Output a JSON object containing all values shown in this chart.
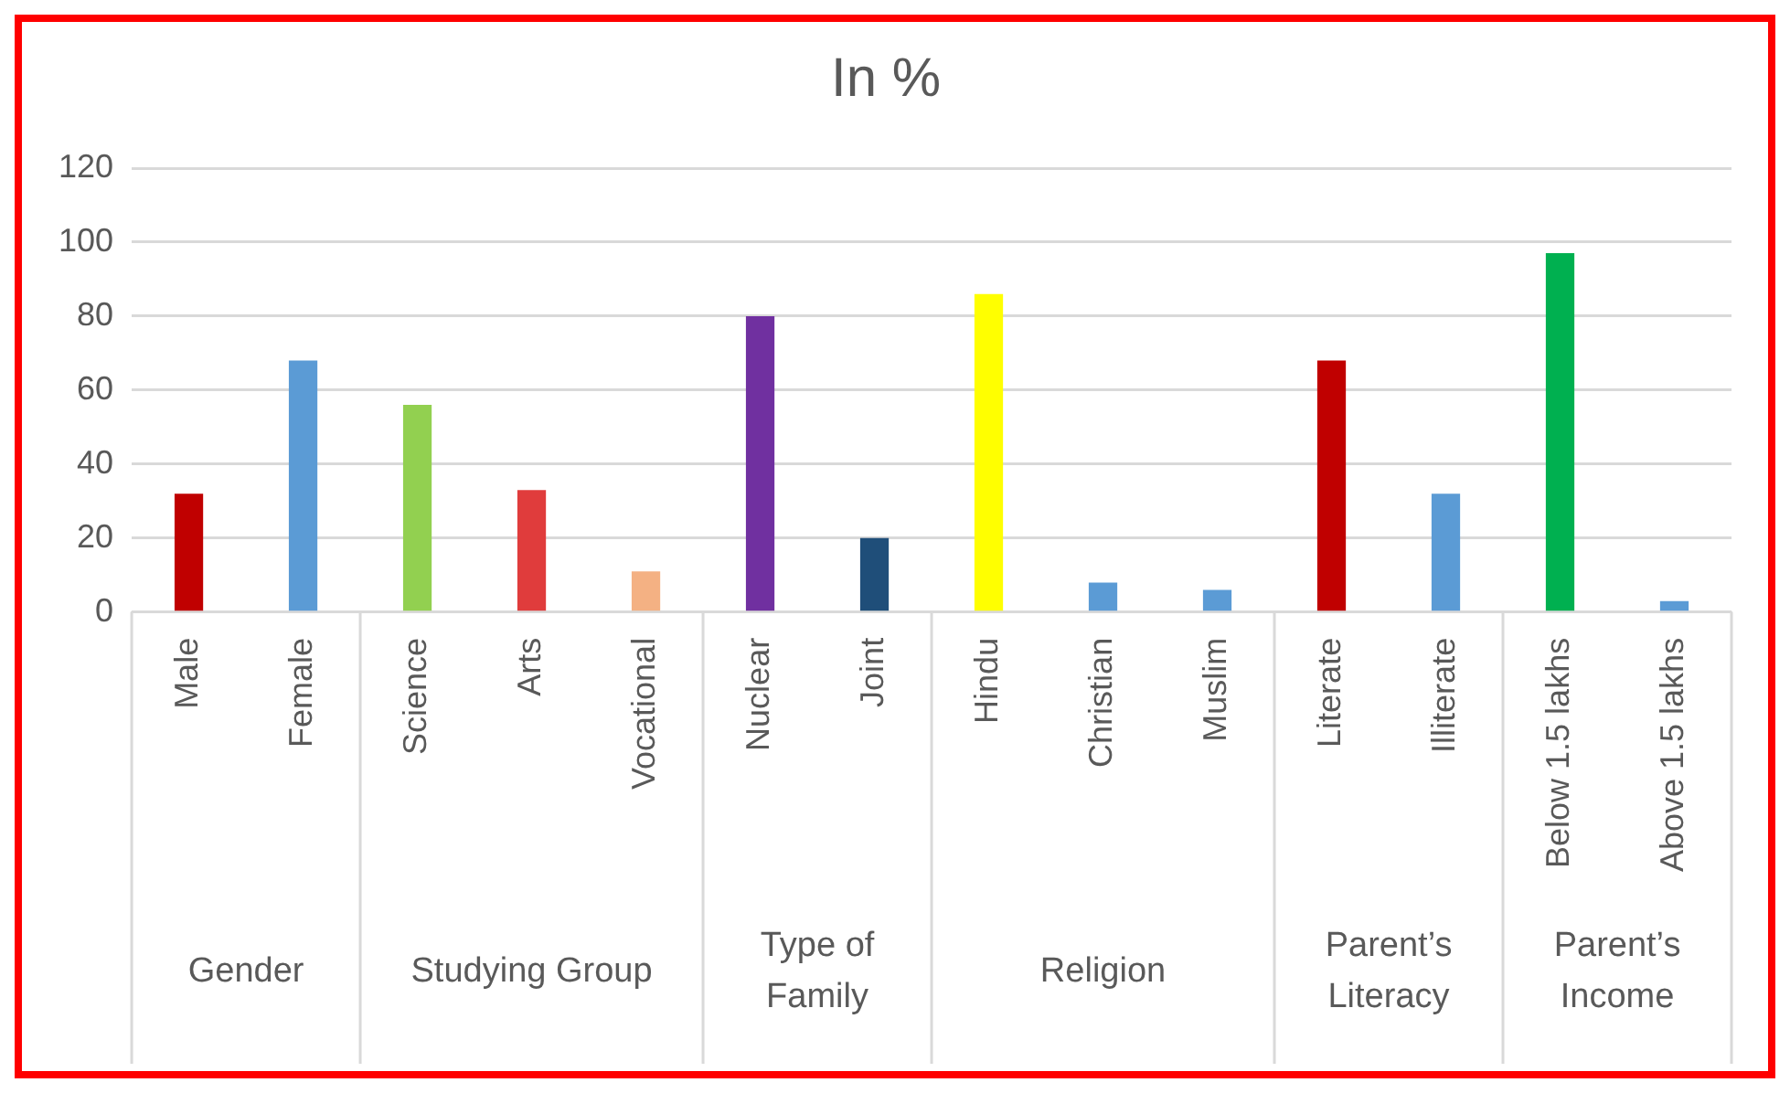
{
  "chart_data": {
    "type": "bar",
    "title": "In %",
    "categories": [
      "Male",
      "Female",
      "Science",
      "Arts",
      "Vocational",
      "Nuclear",
      "Joint",
      "Hindu",
      "Christian",
      "Muslim",
      "Literate",
      "Illiterate",
      "Below 1.5 lakhs",
      "Above 1.5 lakhs"
    ],
    "values": [
      32,
      68,
      56,
      33,
      11,
      80,
      20,
      86,
      8,
      6,
      68,
      32,
      97,
      3
    ],
    "colors": [
      "#c00000",
      "#5b9bd5",
      "#92d050",
      "#e03c3c",
      "#f4b183",
      "#7030a0",
      "#1f4e79",
      "#ffff00",
      "#5b9bd5",
      "#5b9bd5",
      "#c00000",
      "#5b9bd5",
      "#00b050",
      "#5b9bd5"
    ],
    "ylim": [
      0,
      120
    ],
    "yticks": [
      0,
      20,
      40,
      60,
      80,
      100,
      120
    ],
    "grid": "y",
    "legend": false,
    "annotations": [
      "Gender",
      "Studying Group",
      "Type of Family",
      "Religion",
      "Parent’s Literacy",
      "Parent’s Income"
    ]
  }
}
